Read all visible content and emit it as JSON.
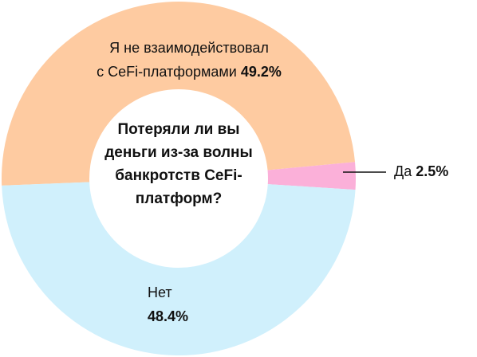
{
  "chart_data": {
    "type": "donut",
    "title": "Потеряли ли вы деньги из-за волны банкротств CeFi-платформ?",
    "categories": [
      "Я не взаимодействовал\nс CeFi-платформами",
      "Да",
      "Нет"
    ],
    "values": [
      49.2,
      2.5,
      48.4
    ],
    "value_labels": [
      "49.2%",
      "2.5%",
      "48.4%"
    ],
    "colors": [
      "#fecba1",
      "#fbb0d9",
      "#d0f0fc"
    ]
  }
}
